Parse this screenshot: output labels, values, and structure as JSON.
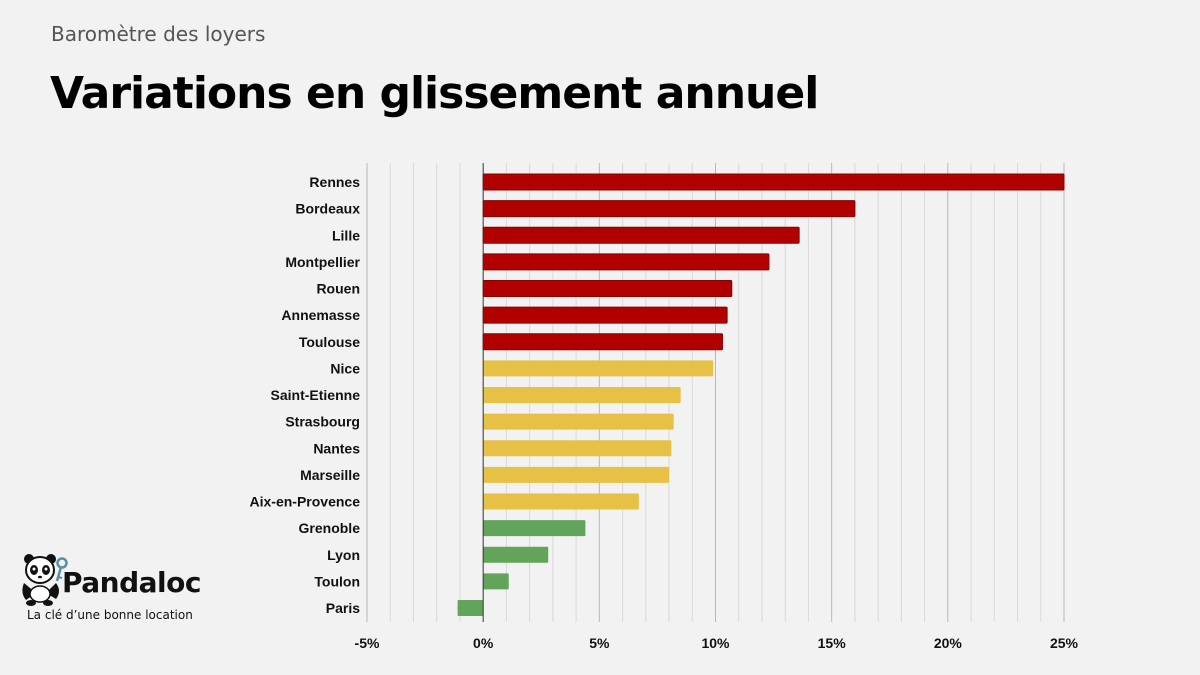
{
  "header": {
    "subtitle": "Baromètre des loyers",
    "title": "Variations en glissement annuel"
  },
  "brand": {
    "name": "Pandaloc",
    "tagline": "La clé d’une bonne location"
  },
  "colors": {
    "high": "#b00000",
    "medium": "#e6c146",
    "low": "#62a55a",
    "grid": "#cccccc",
    "background": "#f2f2f2"
  },
  "chart_data": {
    "type": "bar",
    "orientation": "horizontal",
    "title": "",
    "xlabel": "",
    "ylabel": "",
    "xlim": [
      -5,
      25
    ],
    "ticks": [
      -5,
      0,
      5,
      10,
      15,
      20,
      25
    ],
    "tick_labels": [
      "-5%",
      "0%",
      "5%",
      "10%",
      "15%",
      "20%",
      "25%"
    ],
    "grid": true,
    "categories": [
      "Rennes",
      "Bordeaux",
      "Lille",
      "Montpellier",
      "Rouen",
      "Annemasse",
      "Toulouse",
      "Nice",
      "Saint-Etienne",
      "Strasbourg",
      "Nantes",
      "Marseille",
      "Aix-en-Provence",
      "Grenoble",
      "Lyon",
      "Toulon",
      "Paris"
    ],
    "values": [
      25.0,
      16.0,
      13.6,
      12.3,
      10.7,
      10.5,
      10.3,
      9.9,
      8.5,
      8.2,
      8.1,
      8.0,
      6.7,
      4.4,
      2.8,
      1.1,
      -1.1
    ],
    "color_groups": [
      "high",
      "high",
      "high",
      "high",
      "high",
      "high",
      "high",
      "medium",
      "medium",
      "medium",
      "medium",
      "medium",
      "medium",
      "low",
      "low",
      "low",
      "low"
    ]
  }
}
